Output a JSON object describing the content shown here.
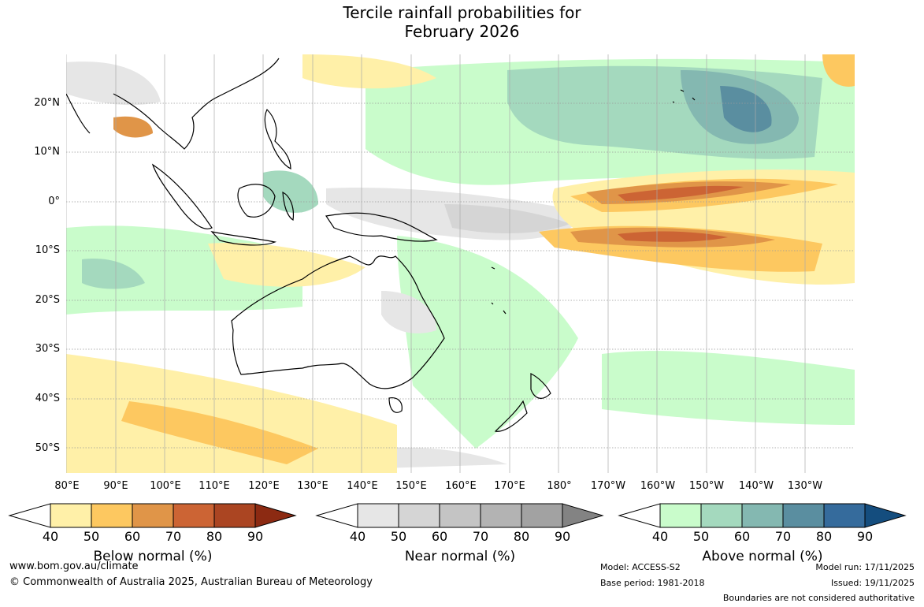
{
  "title_line1": "Tercile rainfall probabilities for",
  "title_line2": "February 2026",
  "lat_labels": [
    "20°N",
    "10°N",
    "0°",
    "10°S",
    "20°S",
    "30°S",
    "40°S",
    "50°S"
  ],
  "lon_labels": [
    "80°E",
    "90°E",
    "100°E",
    "110°E",
    "120°E",
    "130°E",
    "140°E",
    "150°E",
    "160°E",
    "170°E",
    "180°",
    "170°W",
    "160°W",
    "150°W",
    "140°W",
    "130°W"
  ],
  "legends": [
    {
      "title": "Below normal (%)",
      "ticks": [
        "40",
        "50",
        "60",
        "70",
        "80",
        "90"
      ],
      "colors": [
        "#fff0a8",
        "#fdc860",
        "#e09548",
        "#cc6434",
        "#ab4522",
        "#8c2a12"
      ]
    },
    {
      "title": "Near normal (%)",
      "ticks": [
        "40",
        "50",
        "60",
        "70",
        "80",
        "90"
      ],
      "colors": [
        "#e6e6e6",
        "#d5d5d5",
        "#c4c4c4",
        "#b3b3b3",
        "#a2a2a2",
        "#838383"
      ]
    },
    {
      "title": "Above normal (%)",
      "ticks": [
        "40",
        "50",
        "60",
        "70",
        "80",
        "90"
      ],
      "colors": [
        "#c9fccb",
        "#a4d9be",
        "#84b8b1",
        "#5a8ea0",
        "#356b9c",
        "#144d7e"
      ]
    }
  ],
  "footer": {
    "website": "www.bom.gov.au/climate",
    "copyright": "© Commonwealth of Australia 2025, Australian Bureau of Meteorology",
    "model": "Model: ACCESS-S2",
    "base_period": "Base period: 1981-2018",
    "model_run": "Model run: 17/11/2025",
    "issued": "Issued: 19/11/2025",
    "disclaimer": "Boundaries are not considered authoritative"
  }
}
